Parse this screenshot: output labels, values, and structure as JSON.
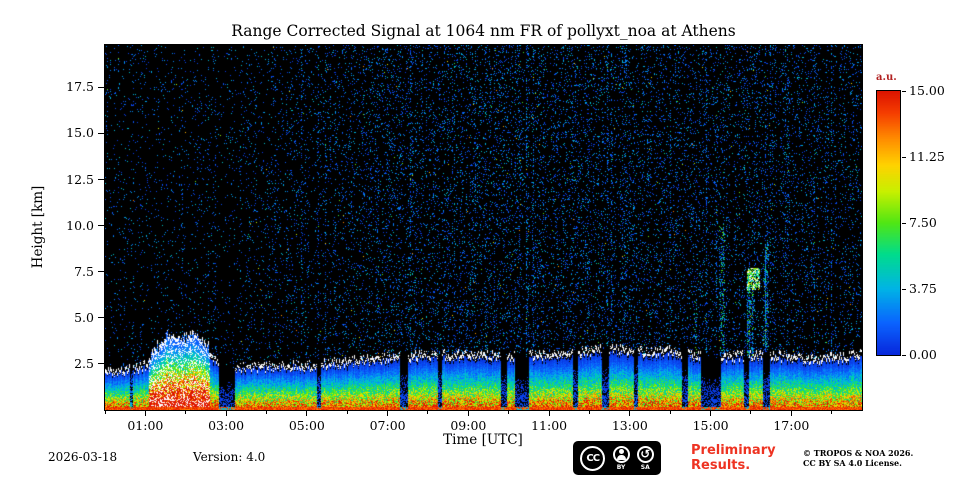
{
  "chart_data": {
    "type": "heatmap",
    "title": "Range Corrected Signal at 1064 nm FR of pollyxt_noa at Athens",
    "xlabel": "Time [UTC]",
    "ylabel": "Height [km]",
    "x_range_hours": [
      0,
      18.75
    ],
    "y_range_km": [
      0,
      19.8
    ],
    "x_tick_labels": [
      "01:00",
      "03:00",
      "05:00",
      "07:00",
      "09:00",
      "11:00",
      "13:00",
      "15:00",
      "17:00"
    ],
    "x_tick_hours": [
      1,
      3,
      5,
      7,
      9,
      11,
      13,
      15,
      17
    ],
    "x_minor_tick_hours": [
      0,
      2,
      4,
      6,
      8,
      10,
      12,
      14,
      16,
      18
    ],
    "y_tick_labels": [
      "2.5",
      "5.0",
      "7.5",
      "10.0",
      "12.5",
      "15.0",
      "17.5"
    ],
    "y_tick_km": [
      2.5,
      5,
      7.5,
      10,
      12.5,
      15,
      17.5
    ],
    "colorbar": {
      "unit_label": "a.u.",
      "unit_label_color": "#b22222",
      "tick_labels": [
        "15.00",
        "11.25",
        "7.50",
        "3.75",
        "0.00"
      ],
      "vmin": 0,
      "vmax": 15
    },
    "background_color": "#000000",
    "colormap_stops": [
      [
        0.0,
        "#0828dc"
      ],
      [
        0.12,
        "#0a64ff"
      ],
      [
        0.25,
        "#00b4e6"
      ],
      [
        0.38,
        "#00dc8c"
      ],
      [
        0.5,
        "#50e614"
      ],
      [
        0.62,
        "#c8f000"
      ],
      [
        0.72,
        "#ffd200"
      ],
      [
        0.82,
        "#ff8c00"
      ],
      [
        0.92,
        "#f53c00"
      ],
      [
        1.0,
        "#dc1400"
      ]
    ],
    "seed": 1337,
    "surface_line_km": 0.18,
    "boundary_layer_top_km": [
      [
        0,
        2.1
      ],
      [
        0.5,
        2.2
      ],
      [
        1.0,
        2.5
      ],
      [
        1.3,
        3.3
      ],
      [
        1.6,
        3.9
      ],
      [
        1.9,
        3.6
      ],
      [
        2.2,
        4.0
      ],
      [
        2.45,
        3.4
      ],
      [
        2.8,
        2.6
      ],
      [
        3.3,
        2.4
      ],
      [
        4,
        2.45
      ],
      [
        5,
        2.5
      ],
      [
        6,
        2.7
      ],
      [
        7,
        2.9
      ],
      [
        8,
        3.05
      ],
      [
        9,
        3.1
      ],
      [
        10,
        3.0
      ],
      [
        11,
        3.1
      ],
      [
        12,
        3.25
      ],
      [
        12.6,
        3.4
      ],
      [
        13.2,
        3.25
      ],
      [
        14,
        3.3
      ],
      [
        14.6,
        3.05
      ],
      [
        15.2,
        2.9
      ],
      [
        16,
        3.1
      ],
      [
        16.8,
        3.0
      ],
      [
        17.5,
        2.85
      ],
      [
        18.3,
        2.95
      ],
      [
        18.75,
        3.1
      ]
    ],
    "plume": {
      "t0": 1.1,
      "t1": 2.6
    },
    "attenuation_gaps": [
      [
        0.62,
        0.7,
        0.35
      ],
      [
        2.82,
        3.22,
        0.07
      ],
      [
        5.25,
        5.35,
        0.15
      ],
      [
        7.3,
        7.5,
        0.1
      ],
      [
        8.25,
        8.35,
        0.12
      ],
      [
        9.8,
        9.95,
        0.1
      ],
      [
        10.15,
        10.5,
        0.08
      ],
      [
        11.6,
        11.72,
        0.12
      ],
      [
        12.3,
        12.48,
        0.1
      ],
      [
        13.1,
        13.2,
        0.15
      ],
      [
        14.3,
        14.45,
        0.1
      ],
      [
        14.75,
        15.25,
        0.08
      ],
      [
        15.82,
        15.95,
        0.12
      ],
      [
        16.3,
        16.48,
        0.1
      ]
    ],
    "clouds": [
      {
        "t0": 15.9,
        "t1": 16.22,
        "h0": 6.5,
        "h1": 7.7
      }
    ],
    "noise_density": [
      [
        0,
        0.035
      ],
      [
        3,
        0.04
      ],
      [
        4.5,
        0.055
      ],
      [
        6,
        0.075
      ],
      [
        8,
        0.1
      ],
      [
        10,
        0.11
      ],
      [
        12,
        0.105
      ],
      [
        13.5,
        0.095
      ],
      [
        15,
        0.09
      ],
      [
        16,
        0.1
      ],
      [
        17,
        0.085
      ],
      [
        18.75,
        0.09
      ]
    ],
    "noise_streaks": [
      {
        "t0": 14.6,
        "t1": 14.7,
        "hmax": 6,
        "mult": 3
      },
      {
        "t0": 15.2,
        "t1": 15.35,
        "hmax": 10,
        "mult": 4
      },
      {
        "t0": 15.9,
        "t1": 16.08,
        "hmax": 7.6,
        "mult": 4.5
      },
      {
        "t0": 16.3,
        "t1": 16.45,
        "hmax": 9,
        "mult": 3.5
      }
    ]
  },
  "footer": {
    "date": "2026-03-18",
    "version": "Version: 4.0",
    "preliminary_line1": "Preliminary",
    "preliminary_line2": "Results.",
    "preliminary_color": "#ee3322",
    "copyright_line1": "© TROPOS & NOA 2026.",
    "copyright_line2": "CC BY SA 4.0 License.",
    "badge": {
      "cc": "CC",
      "by": "BY",
      "sa": "SA",
      "sa_glyph": "↺"
    }
  }
}
